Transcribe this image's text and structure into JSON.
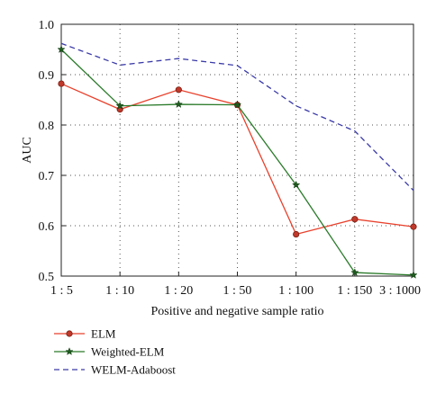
{
  "chart_data": {
    "type": "line",
    "xlabel": "Positive and negative sample ratio",
    "ylabel": "AUC",
    "categories": [
      "1 : 5",
      "1 : 10",
      "1 : 20",
      "1 : 50",
      "1 : 100",
      "1 : 150",
      "3 : 1000"
    ],
    "ylim": [
      0.5,
      1.0
    ],
    "yticks": [
      "0.5",
      "0.6",
      "0.7",
      "0.8",
      "0.9",
      "1.0"
    ],
    "grid": true,
    "legend_position": "bottom-left, below axes",
    "series": [
      {
        "name": "ELM",
        "color": "#e8412c",
        "marker": "circle",
        "dash": "solid",
        "values": [
          0.882,
          0.831,
          0.87,
          0.84,
          0.583,
          0.613,
          0.598
        ]
      },
      {
        "name": "Weighted-ELM",
        "color": "#2a7a2a",
        "marker": "star",
        "dash": "solid",
        "values": [
          0.95,
          0.838,
          0.841,
          0.84,
          0.681,
          0.507,
          0.502
        ]
      },
      {
        "name": "WELM-Adaboost",
        "color": "#3a3aa8",
        "marker": "none",
        "dash": "dashed",
        "values": [
          0.962,
          0.919,
          0.932,
          0.918,
          0.838,
          0.788,
          0.67
        ]
      }
    ]
  }
}
